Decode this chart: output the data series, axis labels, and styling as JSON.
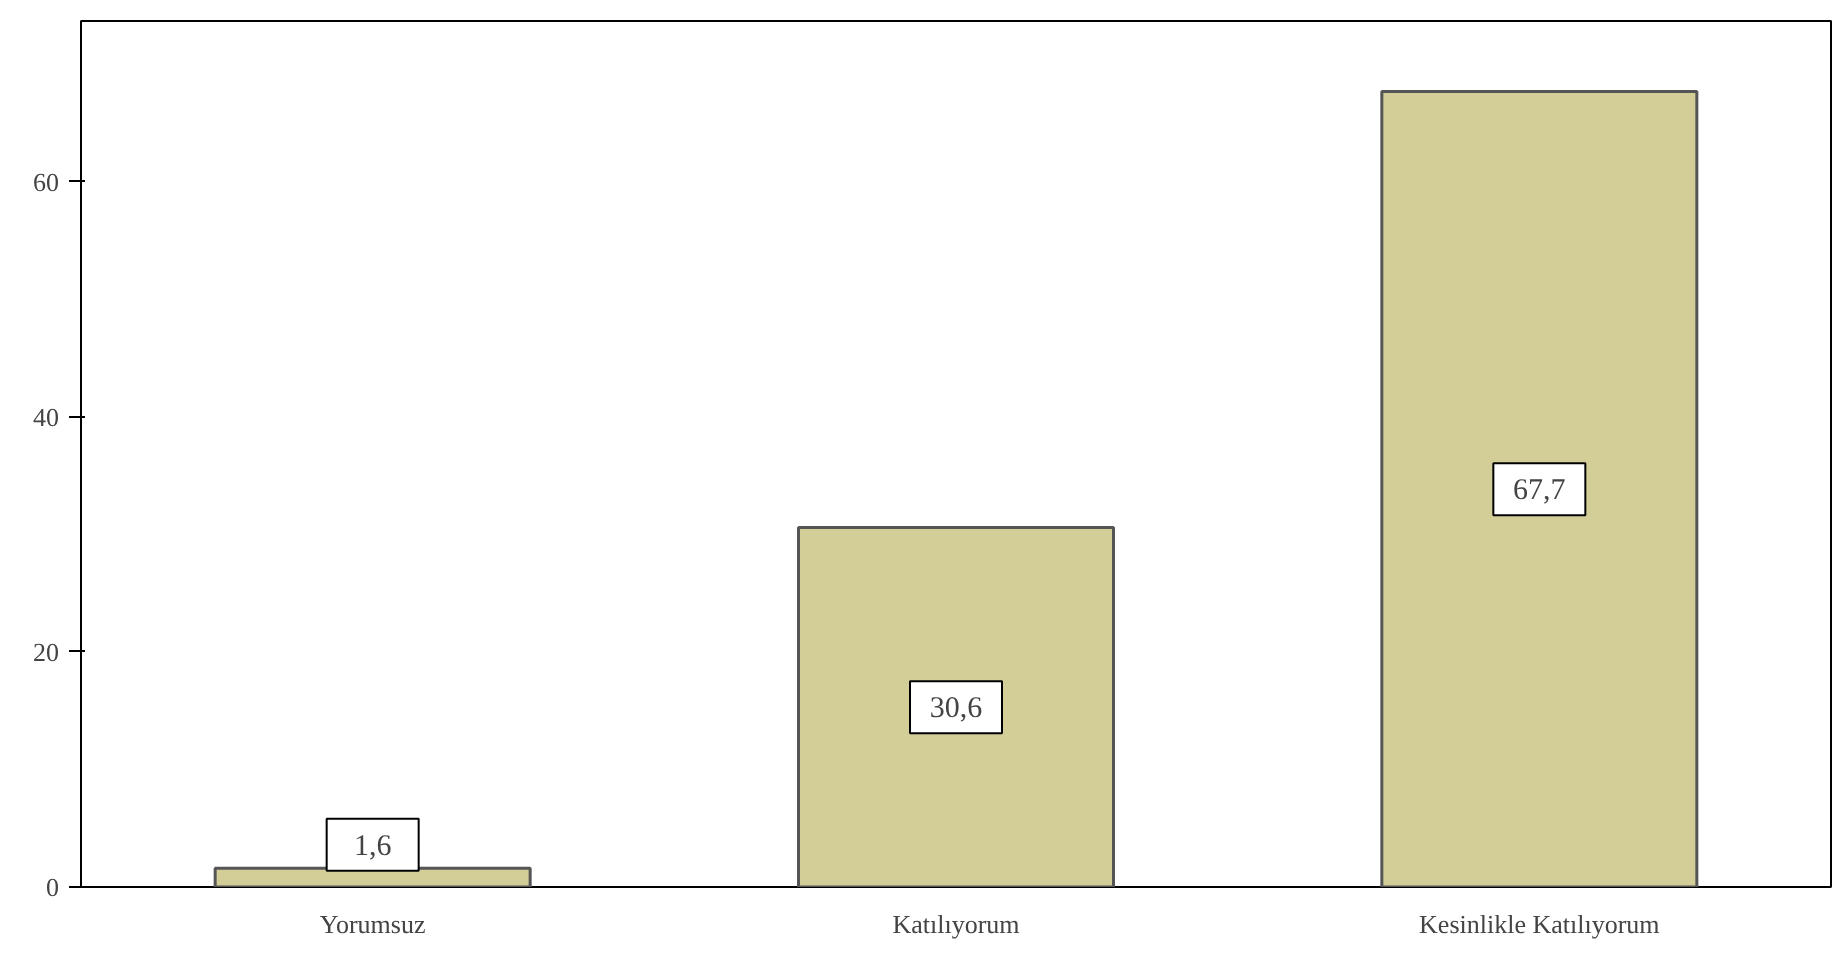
{
  "chart_data": {
    "type": "bar",
    "categories": [
      "Yorumsuz",
      "Katılıyorum",
      "Kesinlikle Katılıyorum"
    ],
    "values": [
      1.6,
      30.6,
      67.7
    ],
    "value_labels": [
      "1,6",
      "30,6",
      "67,7"
    ],
    "color": "#d3ce98",
    "ylim": [
      0,
      73.7
    ],
    "yticks": [
      0,
      20,
      40,
      60
    ],
    "grid": false
  }
}
